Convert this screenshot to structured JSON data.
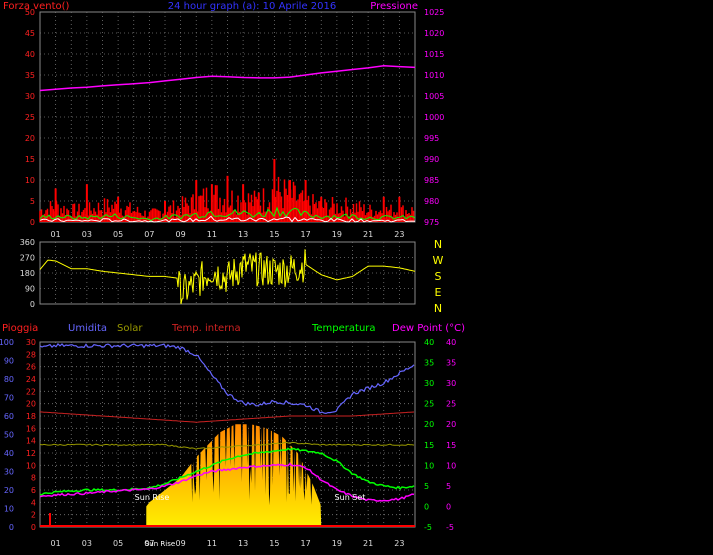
{
  "header": {
    "left_label": "Forza vento()",
    "center_label": "24 hour graph (a):  10 Aprile 2016",
    "right_label": "Pressione"
  },
  "panel3_labels": {
    "pioggia": "Pioggia",
    "umidita": "Umidita",
    "solar": "Solar",
    "temp_interna": "Temp. interna",
    "temperatura": "Temperatura",
    "dew_point": "Dew Point (°C)"
  },
  "annotations": {
    "sun_rise": "Sun Rise",
    "sun_set": "Sun Set",
    "time_label": "Sun Rise"
  },
  "direction_letters": [
    "N",
    "W",
    "S",
    "E",
    "N"
  ],
  "colors": {
    "wind": "#ff0000",
    "gust": "#ffffff",
    "avg": "#00ff00",
    "pressure": "#ff00ff",
    "direction": "#ffff00",
    "rain": "#ff0000",
    "humidity": "#6666ff",
    "solar": "#ffcc00",
    "temp_in": "#cc2222",
    "temp": "#00ff00",
    "dew": "#ff00ff",
    "grid": "#777777"
  },
  "chart_data": [
    {
      "type": "line",
      "title": "24 hour graph (a):  10 Aprile 2016",
      "x_ticks": [
        "01",
        "03",
        "05",
        "07",
        "09",
        "11",
        "13",
        "15",
        "17",
        "19",
        "21",
        "23"
      ],
      "y_left": {
        "label": "Forza vento()",
        "ylim": [
          0,
          50
        ],
        "ticks": [
          0,
          5,
          10,
          15,
          20,
          25,
          30,
          35,
          40,
          45,
          50
        ]
      },
      "y_right": {
        "label": "Pressione",
        "ylim": [
          975,
          1025
        ],
        "ticks": [
          975,
          980,
          985,
          990,
          995,
          1000,
          1005,
          1010,
          1015,
          1020,
          1025
        ]
      },
      "series": [
        {
          "name": "Pressione",
          "axis": "right",
          "x": [
            0,
            1,
            2,
            3,
            4,
            5,
            6,
            7,
            8,
            9,
            10,
            11,
            12,
            13,
            14,
            15,
            16,
            17,
            18,
            19,
            20,
            21,
            22,
            23,
            24
          ],
          "values": [
            1006.3,
            1006.6,
            1006.9,
            1007.1,
            1007.4,
            1007.7,
            1007.9,
            1008.2,
            1008.6,
            1009.0,
            1009.4,
            1009.7,
            1009.6,
            1009.4,
            1009.3,
            1009.3,
            1009.5,
            1010.0,
            1010.5,
            1010.9,
            1011.3,
            1011.7,
            1012.2,
            1012.0,
            1011.8
          ]
        },
        {
          "name": "Forza vento",
          "axis": "left",
          "x": [
            0,
            1,
            2,
            3,
            4,
            5,
            6,
            7,
            8,
            9,
            10,
            11,
            12,
            13,
            14,
            15,
            16,
            17,
            18,
            19,
            20,
            21,
            22,
            23,
            24
          ],
          "values": [
            3,
            4,
            3,
            3,
            4,
            4,
            3,
            2,
            3,
            4,
            5,
            7,
            6,
            6,
            5,
            8,
            7,
            5,
            4,
            4,
            4,
            3,
            3,
            3,
            3
          ]
        },
        {
          "name": "Raffica",
          "axis": "left",
          "x": [
            1,
            3,
            5,
            8,
            10,
            11,
            12,
            13,
            14,
            15,
            16,
            17,
            18,
            22,
            23
          ],
          "values": [
            8,
            9,
            6,
            5,
            10,
            9,
            11,
            9,
            7,
            15,
            10,
            10,
            6,
            6,
            6
          ]
        }
      ]
    },
    {
      "type": "line",
      "title": "",
      "y_left": {
        "ylim": [
          0,
          360
        ],
        "ticks": [
          0,
          90,
          180,
          270,
          360
        ]
      },
      "series": [
        {
          "name": "Direzione",
          "x": [
            0,
            0.5,
            1,
            2,
            3,
            4,
            5,
            6,
            7,
            8,
            8.8,
            9,
            10,
            11,
            12,
            13,
            14,
            15,
            16,
            17,
            18,
            19,
            20,
            21,
            22,
            23,
            24
          ],
          "values": [
            200,
            255,
            250,
            205,
            205,
            190,
            180,
            170,
            160,
            160,
            150,
            60,
            120,
            200,
            150,
            220,
            200,
            190,
            200,
            230,
            170,
            140,
            160,
            220,
            220,
            210,
            190
          ]
        }
      ]
    },
    {
      "type": "line",
      "title": "",
      "y_left": {
        "label": "Umidita",
        "ylim": [
          0,
          100
        ],
        "ticks": [
          0,
          10,
          20,
          30,
          40,
          50,
          60,
          70,
          80,
          90,
          100
        ]
      },
      "y_left2": {
        "label": "Pioggia",
        "ylim": [
          0,
          30
        ],
        "ticks": [
          0,
          2,
          4,
          6,
          8,
          10,
          12,
          14,
          16,
          18,
          20,
          22,
          24,
          26,
          28,
          30
        ]
      },
      "y_right": {
        "label": "Temperatura",
        "ylim": [
          -5,
          40
        ],
        "ticks": [
          -5,
          0,
          5,
          10,
          15,
          20,
          25,
          30,
          35,
          40
        ]
      },
      "y_right2": {
        "label": "Dew Point (°C)",
        "ylim": [
          -5,
          40
        ],
        "ticks": [
          -5,
          0,
          5,
          10,
          15,
          20,
          25,
          30,
          35,
          40
        ]
      },
      "series": [
        {
          "name": "Umidita",
          "axis": "left",
          "x": [
            0,
            1,
            2,
            3,
            4,
            5,
            6,
            7,
            8,
            9,
            10,
            11,
            12,
            13,
            14,
            15,
            16,
            17,
            18,
            19,
            20,
            21,
            22,
            23,
            24
          ],
          "values": [
            97,
            98,
            98,
            98,
            98,
            98,
            98,
            98,
            98,
            97,
            93,
            82,
            72,
            67,
            66,
            68,
            67,
            66,
            62,
            63,
            72,
            75,
            78,
            83,
            88
          ]
        },
        {
          "name": "Temperatura",
          "axis": "right",
          "x": [
            0,
            1,
            2,
            3,
            4,
            5,
            6,
            7,
            8,
            9,
            10,
            11,
            12,
            13,
            14,
            15,
            16,
            17,
            18,
            19,
            20,
            21,
            22,
            23,
            24
          ],
          "values": [
            3,
            3.5,
            3.8,
            4,
            4,
            4,
            4.2,
            4.5,
            5.5,
            7,
            8.5,
            10,
            11.5,
            12.5,
            13,
            13.5,
            14,
            13.5,
            13,
            11,
            8,
            6,
            5,
            4.5,
            5
          ]
        },
        {
          "name": "Dew Point",
          "axis": "right",
          "x": [
            0,
            1,
            2,
            3,
            4,
            5,
            6,
            7,
            8,
            9,
            10,
            11,
            12,
            13,
            14,
            15,
            16,
            17,
            18,
            19,
            20,
            21,
            22,
            23,
            24
          ],
          "values": [
            2.5,
            2.8,
            3,
            3.2,
            3.5,
            3.8,
            4,
            4.2,
            5,
            6,
            7.5,
            8.5,
            9,
            9.5,
            9.8,
            10,
            10.2,
            9.5,
            6.5,
            4,
            2.5,
            1.5,
            1.5,
            1.8,
            3
          ]
        },
        {
          "name": "Temp. interna",
          "axis": "right",
          "x": [
            0,
            2,
            4,
            6,
            8,
            10,
            12,
            14,
            16,
            18,
            20,
            22,
            24
          ],
          "values": [
            23,
            22.5,
            22,
            21.5,
            21,
            20.5,
            21,
            21.5,
            22,
            22,
            22,
            22.5,
            23
          ]
        },
        {
          "name": "Solar",
          "axis": "right",
          "x": [
            0,
            2,
            4,
            6,
            8,
            10,
            12,
            14,
            16,
            18,
            20,
            22,
            24
          ],
          "values": [
            15,
            15,
            15,
            15,
            15,
            14,
            14.5,
            15,
            15.5,
            15,
            15,
            15,
            15
          ]
        },
        {
          "name": "Radiazione solare",
          "axis": "area",
          "x": [
            6.8,
            7,
            8,
            9,
            10,
            10.5,
            11,
            11.5,
            12,
            12.5,
            13,
            13.5,
            14,
            14.5,
            15,
            15.5,
            16,
            16.5,
            17,
            17.5,
            18
          ],
          "values": [
            0,
            1,
            4,
            7,
            12,
            14,
            16,
            18,
            19,
            20,
            20,
            20,
            19.5,
            19,
            18,
            17,
            15,
            13,
            9,
            5,
            0
          ]
        }
      ]
    }
  ]
}
